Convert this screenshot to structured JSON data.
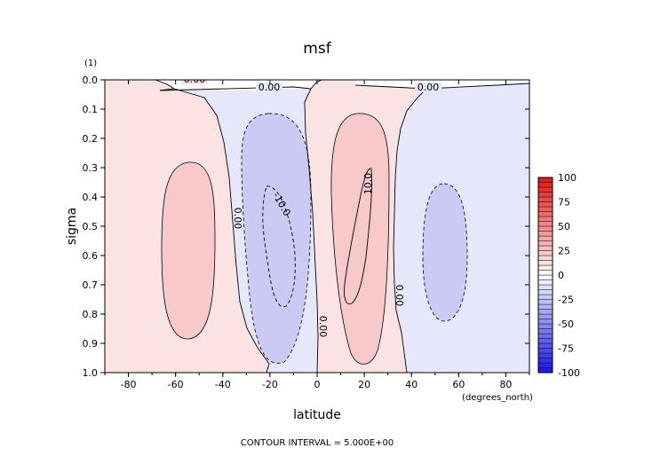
{
  "chart_data": {
    "type": "contour",
    "title": "msf",
    "xlabel": "latitude",
    "xunits": "(degrees_north)",
    "ylabel": "sigma",
    "yunits": "(1)",
    "footer": "CONTOUR INTERVAL = 5.000E+00",
    "xlim": [
      -90,
      90
    ],
    "ylim": [
      1.0,
      0.0
    ],
    "y_reversed": true,
    "xticks": [
      -80,
      -60,
      -40,
      -20,
      0,
      20,
      40,
      60,
      80
    ],
    "yticks": [
      "0.0",
      "0.1",
      "0.2",
      "0.3",
      "0.4",
      "0.5",
      "0.6",
      "0.7",
      "0.8",
      "0.9",
      "1.0"
    ],
    "contour_interval": 5.0,
    "colorbar": {
      "ticks": [
        100,
        75,
        50,
        25,
        0,
        -25,
        -50,
        -75,
        -100
      ],
      "range": [
        -100,
        100
      ],
      "colormap": "blue-white-red"
    },
    "contour_labels": [
      "0.00",
      "0.00",
      "0.00",
      "0.00",
      "-10.0",
      "10.0",
      "0.00",
      "0.00"
    ],
    "features": [
      {
        "sign": "positive",
        "lat": [
          -65,
          -40
        ],
        "sigma": [
          0.28,
          0.88
        ]
      },
      {
        "sign": "negative",
        "lat": [
          -28,
          -3
        ],
        "sigma": [
          0.12,
          0.97
        ]
      },
      {
        "sign": "positive",
        "lat": [
          6,
          35
        ],
        "sigma": [
          0.12,
          0.97
        ]
      },
      {
        "sign": "negative",
        "lat": [
          35,
          52
        ],
        "sigma": [
          0.35,
          0.83
        ]
      }
    ],
    "colors": {
      "positive_fill": "#fce3e3",
      "positive_core": "#f8c9cb",
      "negative_fill": "#e7e7fb",
      "negative_core": "#cacaf5",
      "background": "#ffffff"
    }
  }
}
